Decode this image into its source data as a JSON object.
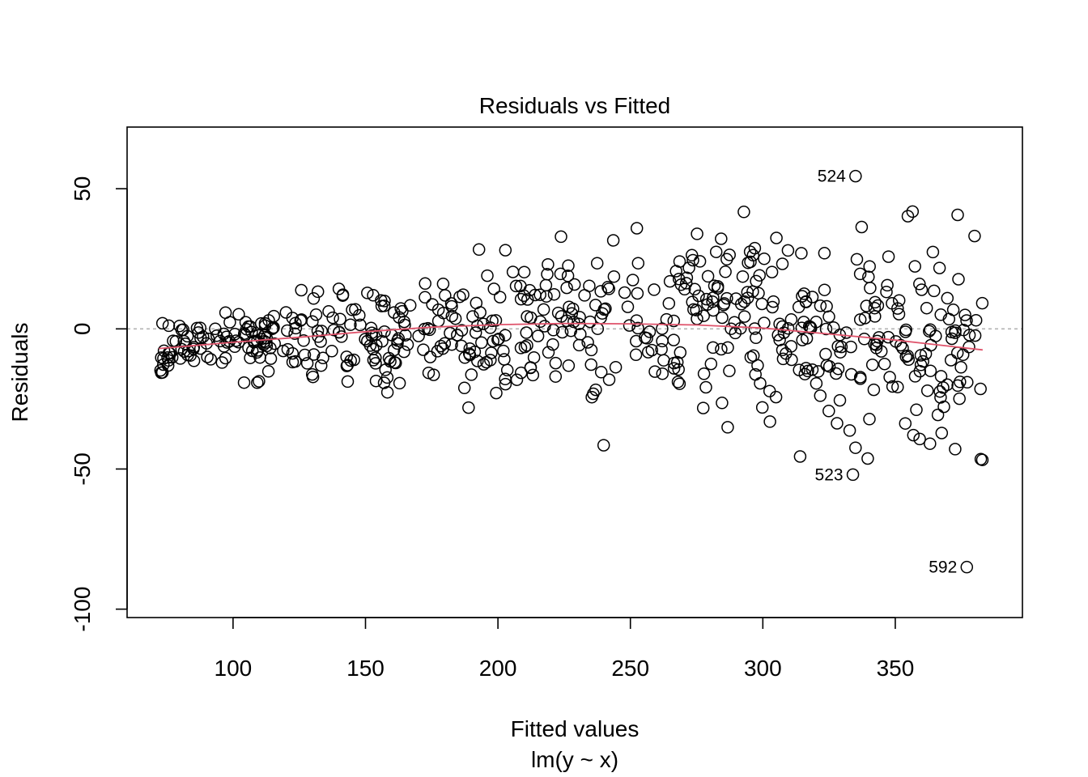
{
  "chart_data": {
    "type": "scatter",
    "title": "Residuals vs Fitted",
    "xlabel": "Fitted values",
    "subxlabel": "lm(y ~ x)",
    "ylabel": "Residuals",
    "xlim": [
      60,
      398
    ],
    "ylim": [
      -103,
      72
    ],
    "xticks": [
      100,
      150,
      200,
      250,
      300,
      350
    ],
    "yticks": [
      -100,
      -50,
      0,
      50
    ],
    "zero_line": true,
    "colors": {
      "points": "#000000",
      "smooth": "#DF536B",
      "zero_line": "#b3b3b3"
    },
    "n_points": 640,
    "labeled_points": [
      {
        "label": "524",
        "x": 335,
        "y": 54.5
      },
      {
        "label": "523",
        "x": 334,
        "y": -52
      },
      {
        "label": "592",
        "x": 377,
        "y": -85
      }
    ],
    "smooth": [
      {
        "x": 72,
        "y": -7.0
      },
      {
        "x": 100,
        "y": -4.8
      },
      {
        "x": 125,
        "y": -3.0
      },
      {
        "x": 150,
        "y": -1.0
      },
      {
        "x": 175,
        "y": 0.6
      },
      {
        "x": 200,
        "y": 1.5
      },
      {
        "x": 225,
        "y": 1.9
      },
      {
        "x": 250,
        "y": 1.8
      },
      {
        "x": 275,
        "y": 1.4
      },
      {
        "x": 300,
        "y": 0.3
      },
      {
        "x": 325,
        "y": -1.8
      },
      {
        "x": 350,
        "y": -4.0
      },
      {
        "x": 383,
        "y": -7.5
      }
    ]
  }
}
